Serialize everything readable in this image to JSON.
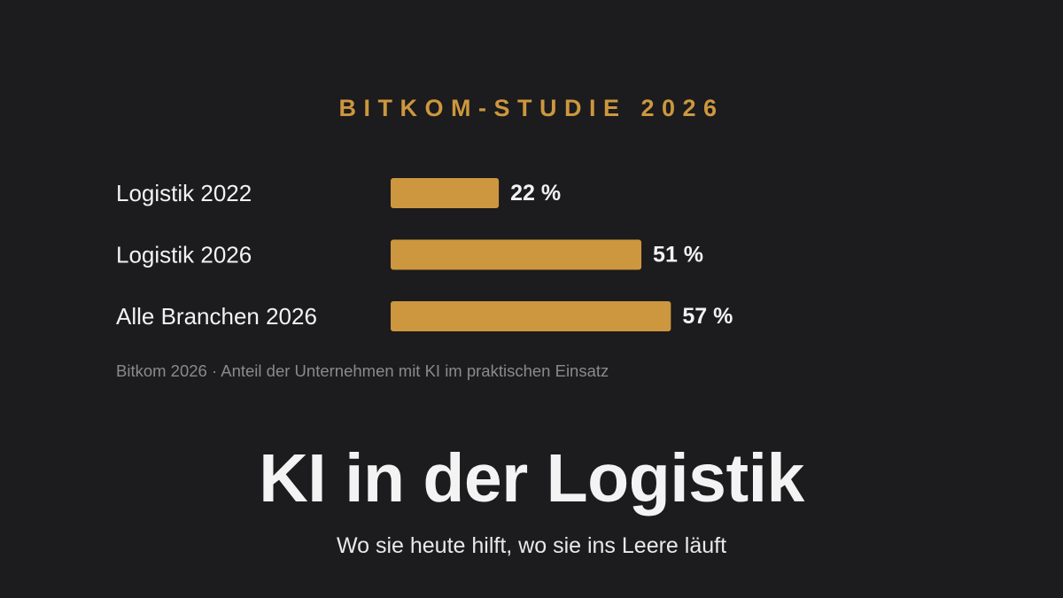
{
  "eyebrow": "BITKOM-STUDIE 2026",
  "colors": {
    "background": "#1c1b1d",
    "bar": "#cc973f",
    "text": "#f2f2f2",
    "muted": "#8a898b"
  },
  "chart_data": {
    "type": "bar",
    "orientation": "horizontal",
    "categories": [
      "Logistik 2022",
      "Logistik 2026",
      "Alle Branchen 2026"
    ],
    "values": [
      22,
      51,
      57
    ],
    "value_labels": [
      "22 %",
      "51 %",
      "57 %"
    ],
    "unit": "%",
    "xlim": [
      0,
      100
    ],
    "grid": false
  },
  "source_note": "Bitkom 2026 · Anteil der Unternehmen mit KI im praktischen Einsatz",
  "headline": "KI in der Logistik",
  "subheadline": "Wo sie heute hilft, wo sie ins Leere läuft"
}
